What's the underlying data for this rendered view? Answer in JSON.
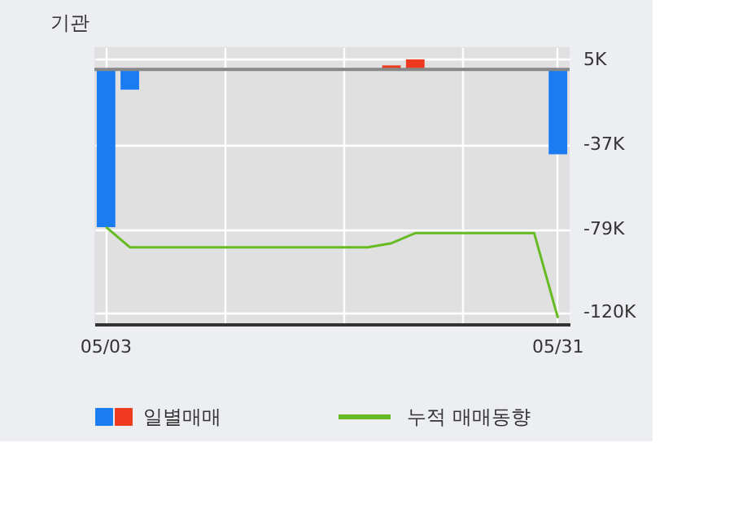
{
  "chart_data": {
    "type": "bar",
    "title": "기관",
    "categories": [
      "05/03",
      null,
      null,
      null,
      null,
      null,
      null,
      null,
      null,
      null,
      null,
      null,
      null,
      null,
      null,
      null,
      null,
      null,
      null,
      "05/31"
    ],
    "series": [
      {
        "name": "일별매매",
        "values": [
          -78,
          -10,
          0,
          0,
          0,
          0,
          0,
          0,
          0,
          0,
          0,
          0,
          2,
          5,
          0,
          0,
          0,
          0,
          0,
          -42
        ],
        "colors": [
          "#1a7cf0",
          "#1a7cf0",
          "#1a7cf0",
          "#1a7cf0",
          "#1a7cf0",
          "#1a7cf0",
          "#1a7cf0",
          "#1a7cf0",
          "#1a7cf0",
          "#1a7cf0",
          "#1a7cf0",
          "#1a7cf0",
          "#f03a20",
          "#f03a20",
          "#1a7cf0",
          "#1a7cf0",
          "#1a7cf0",
          "#1a7cf0",
          "#1a7cf0",
          "#1a7cf0"
        ]
      },
      {
        "name": "누적 매매동향",
        "type": "line",
        "color": "#66bb22",
        "values": [
          -78,
          -88,
          -88,
          -88,
          -88,
          -88,
          -88,
          -88,
          -88,
          -88,
          -88,
          -88,
          -86,
          -81,
          -81,
          -81,
          -81,
          -81,
          -81,
          -123
        ]
      }
    ],
    "ylim": [
      -126,
      11
    ],
    "yticks": [
      {
        "value": 5,
        "label": "5K"
      },
      {
        "value": -37,
        "label": "-37K"
      },
      {
        "value": -79,
        "label": "-79K"
      },
      {
        "value": -120,
        "label": "-120K"
      }
    ],
    "ref_lines": [
      {
        "axis": "y",
        "value": 0,
        "color": "#888888"
      }
    ],
    "grid": true,
    "legend": "bottom"
  }
}
